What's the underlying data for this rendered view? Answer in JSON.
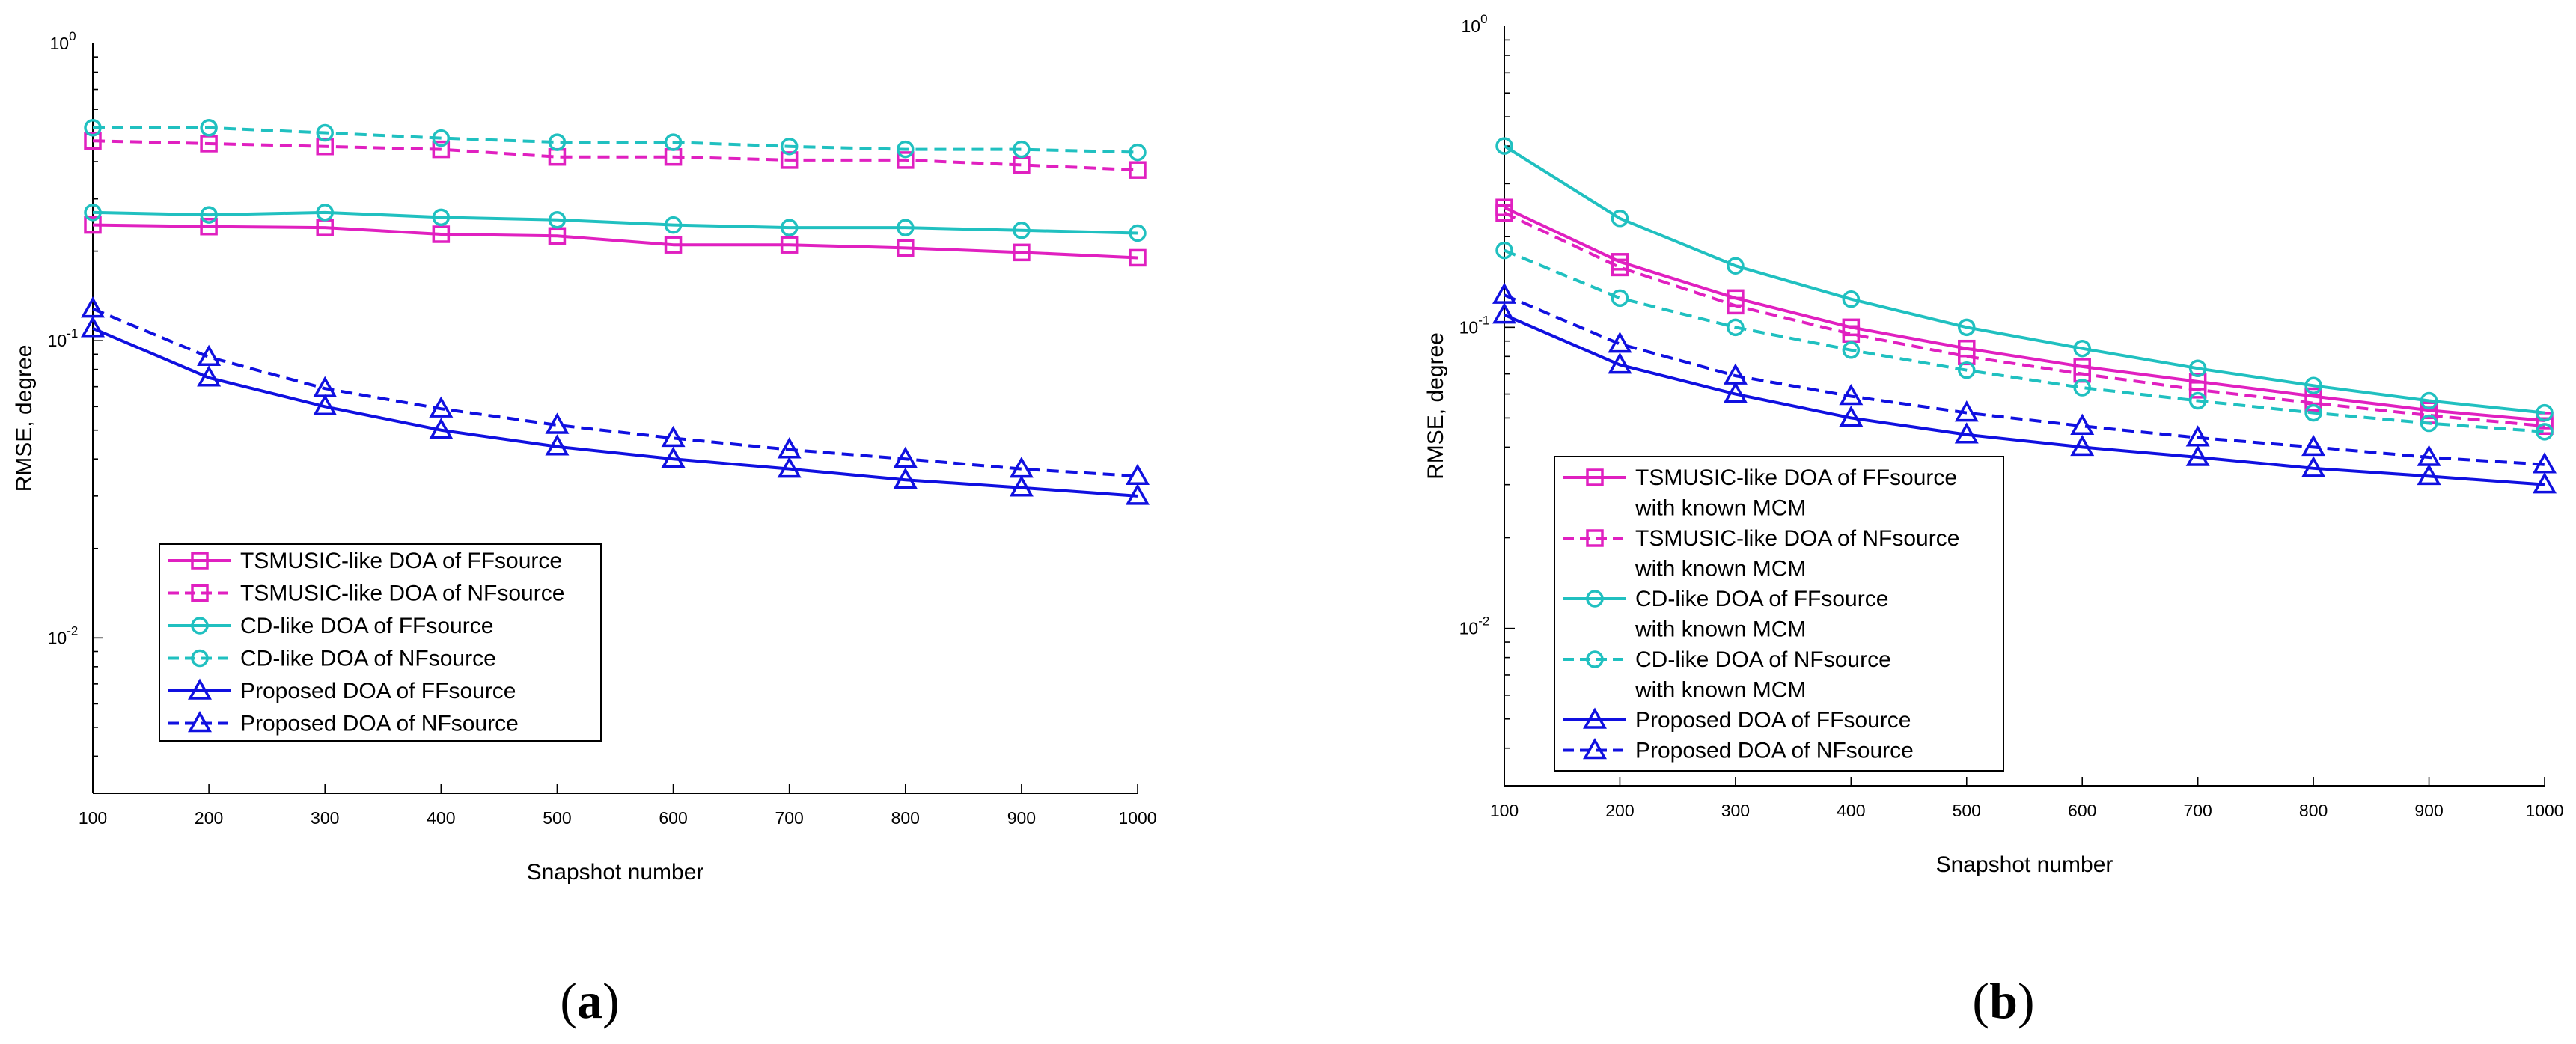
{
  "chart_data": [
    {
      "panel": "a",
      "caption": {
        "open": "(",
        "letter": "a",
        "close": ")"
      },
      "type": "line",
      "xlabel": "Snapshot number",
      "ylabel": "RMSE, degree",
      "yscale": "log",
      "xlim": [
        100,
        1000
      ],
      "ylim": [
        0.003,
        1
      ],
      "x": [
        100,
        200,
        300,
        400,
        500,
        600,
        700,
        800,
        900,
        1000
      ],
      "x_ticks": [
        "100",
        "200",
        "300",
        "400",
        "500",
        "600",
        "700",
        "800",
        "900",
        "1000"
      ],
      "y_ticks": [
        {
          "value": 1,
          "base": "10",
          "exp": "0"
        },
        {
          "value": 0.1,
          "base": "10",
          "exp": "-1"
        },
        {
          "value": 0.01,
          "base": "10",
          "exp": "-2"
        }
      ],
      "legend_position": "lower-left",
      "series": [
        {
          "name": "TSMUSIC-like DOA of FFsource",
          "label_lines": [
            "TSMUSIC-like DOA of FFsource"
          ],
          "color": "#e020c0",
          "dash": "solid",
          "marker": "square",
          "values": [
            0.245,
            0.242,
            0.24,
            0.228,
            0.225,
            0.21,
            0.21,
            0.205,
            0.198,
            0.19
          ]
        },
        {
          "name": "TSMUSIC-like DOA of NFsource",
          "label_lines": [
            "TSMUSIC-like DOA of NFsource"
          ],
          "color": "#e020c0",
          "dash": "dashed",
          "marker": "square",
          "values": [
            0.47,
            0.46,
            0.45,
            0.44,
            0.415,
            0.415,
            0.405,
            0.405,
            0.39,
            0.375
          ]
        },
        {
          "name": "CD-like DOA of FFsource",
          "label_lines": [
            "CD-like DOA of FFsource"
          ],
          "color": "#20c0c0",
          "dash": "solid",
          "marker": "circle",
          "values": [
            0.27,
            0.265,
            0.27,
            0.26,
            0.255,
            0.245,
            0.24,
            0.24,
            0.235,
            0.23
          ]
        },
        {
          "name": "CD-like DOA of NFsource",
          "label_lines": [
            "CD-like DOA of NFsource"
          ],
          "color": "#20c0c0",
          "dash": "dashed",
          "marker": "circle",
          "values": [
            0.52,
            0.52,
            0.5,
            0.48,
            0.465,
            0.465,
            0.45,
            0.44,
            0.44,
            0.43
          ]
        },
        {
          "name": "Proposed DOA of FFsource",
          "label_lines": [
            "Proposed DOA of FFsource"
          ],
          "color": "#1010e0",
          "dash": "solid",
          "marker": "triangle",
          "values": [
            0.11,
            0.075,
            0.06,
            0.05,
            0.044,
            0.04,
            0.037,
            0.034,
            0.032,
            0.03
          ]
        },
        {
          "name": "Proposed DOA of NFsource",
          "label_lines": [
            "Proposed DOA of NFsource"
          ],
          "color": "#1010e0",
          "dash": "dashed",
          "marker": "triangle",
          "values": [
            0.128,
            0.088,
            0.069,
            0.059,
            0.052,
            0.047,
            0.043,
            0.04,
            0.037,
            0.035
          ]
        }
      ]
    },
    {
      "panel": "b",
      "caption": {
        "open": "(",
        "letter": "b",
        "close": ")"
      },
      "type": "line",
      "xlabel": "Snapshot number",
      "ylabel": "RMSE, degree",
      "yscale": "log",
      "xlim": [
        100,
        1000
      ],
      "ylim": [
        0.003,
        1
      ],
      "x": [
        100,
        200,
        300,
        400,
        500,
        600,
        700,
        800,
        900,
        1000
      ],
      "x_ticks": [
        "100",
        "200",
        "300",
        "400",
        "500",
        "600",
        "700",
        "800",
        "900",
        "1000"
      ],
      "y_ticks": [
        {
          "value": 1,
          "base": "10",
          "exp": "0"
        },
        {
          "value": 0.1,
          "base": "10",
          "exp": "-1"
        },
        {
          "value": 0.01,
          "base": "10",
          "exp": "-2"
        }
      ],
      "legend_position": "lower-left",
      "series": [
        {
          "name": "TSMUSIC-like DOA of FFsource with known MCM",
          "label_lines": [
            "TSMUSIC-like DOA of FFsource",
            "with known MCM"
          ],
          "color": "#e020c0",
          "dash": "solid",
          "marker": "square",
          "values": [
            0.25,
            0.165,
            0.125,
            0.1,
            0.085,
            0.074,
            0.066,
            0.059,
            0.053,
            0.049
          ]
        },
        {
          "name": "TSMUSIC-like DOA of NFsource with known MCM",
          "label_lines": [
            "TSMUSIC-like DOA of NFsource",
            "with known MCM"
          ],
          "color": "#e020c0",
          "dash": "dashed",
          "marker": "square",
          "values": [
            0.24,
            0.158,
            0.118,
            0.095,
            0.08,
            0.07,
            0.062,
            0.056,
            0.051,
            0.047
          ]
        },
        {
          "name": "CD-like DOA of FFsource with known MCM",
          "label_lines": [
            "CD-like DOA of FFsource",
            "with known MCM"
          ],
          "color": "#20c0c0",
          "dash": "solid",
          "marker": "circle",
          "values": [
            0.4,
            0.23,
            0.16,
            0.124,
            0.1,
            0.085,
            0.073,
            0.064,
            0.057,
            0.052
          ]
        },
        {
          "name": "CD-like DOA of NFsource with known MCM",
          "label_lines": [
            "CD-like DOA of NFsource",
            "with known MCM"
          ],
          "color": "#20c0c0",
          "dash": "dashed",
          "marker": "circle",
          "values": [
            0.18,
            0.125,
            0.1,
            0.084,
            0.072,
            0.063,
            0.057,
            0.052,
            0.048,
            0.045
          ]
        },
        {
          "name": "Proposed DOA of FFsource",
          "label_lines": [
            "Proposed DOA of FFsource"
          ],
          "color": "#1010e0",
          "dash": "solid",
          "marker": "triangle",
          "values": [
            0.11,
            0.075,
            0.06,
            0.05,
            0.044,
            0.04,
            0.037,
            0.034,
            0.032,
            0.03
          ]
        },
        {
          "name": "Proposed DOA of NFsource",
          "label_lines": [
            "Proposed DOA of NFsource"
          ],
          "color": "#1010e0",
          "dash": "dashed",
          "marker": "triangle",
          "values": [
            0.128,
            0.088,
            0.069,
            0.059,
            0.052,
            0.047,
            0.043,
            0.04,
            0.037,
            0.035
          ]
        }
      ]
    }
  ]
}
